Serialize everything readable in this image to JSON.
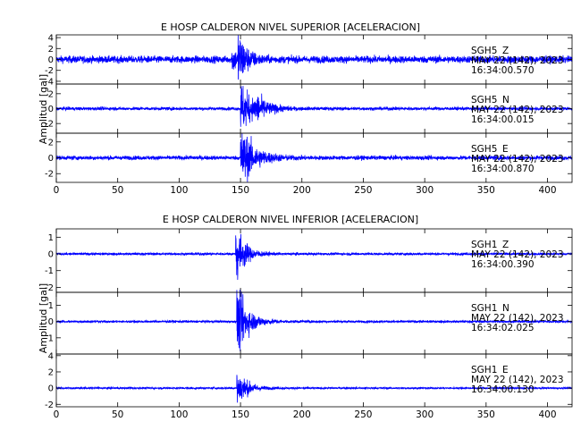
{
  "chart_data": [
    {
      "type": "line",
      "title": "E HOSP CALDERON NIVEL SUPERIOR [ACELERACION]",
      "ylabel": "Amplitud [gal]",
      "xlabel": "",
      "xlim": [
        0,
        420
      ],
      "x_ticks": [
        0,
        50,
        100,
        150,
        200,
        250,
        300,
        350,
        400
      ],
      "line_color": "#0000ff",
      "grid": false,
      "series": [
        {
          "name": "SGH5 Z",
          "station": "SGH5",
          "component": "Z",
          "date": "MAY 22 (142), 2023",
          "time": "16:34:00.570",
          "ylim": [
            -4.5,
            4.5
          ],
          "y_ticks": [
            -4,
            -2,
            0,
            2,
            4
          ],
          "noise": 0.45,
          "events": [
            {
              "t": 143,
              "amp": 1.6,
              "decay": 5
            },
            {
              "t": 148,
              "amp": 3.2,
              "decay": 7
            }
          ]
        },
        {
          "name": "SGH5 N",
          "station": "SGH5",
          "component": "N",
          "date": "MAY 22 (142), 2023",
          "time": "16:34:00.015",
          "ylim": [
            -3.3,
            3.3
          ],
          "y_ticks": [
            -2,
            0,
            2
          ],
          "noise": 0.15,
          "events": [
            {
              "t": 150,
              "amp": 2.6,
              "decay": 9
            },
            {
              "t": 162,
              "amp": 0.9,
              "decay": 10
            }
          ]
        },
        {
          "name": "SGH5 E",
          "station": "SGH5",
          "component": "E",
          "date": "MAY 22 (142), 2023",
          "time": "16:34:00.870",
          "ylim": [
            -3.1,
            3.1
          ],
          "y_ticks": [
            -2,
            0,
            2
          ],
          "noise": 0.18,
          "events": [
            {
              "t": 150,
              "amp": 2.8,
              "decay": 11
            }
          ]
        }
      ]
    },
    {
      "type": "line",
      "title": "E HOSP CALDERON NIVEL INFERIOR [ACELERACION]",
      "ylabel": "Amplitud [gal]",
      "xlabel": "",
      "xlim": [
        0,
        420
      ],
      "x_ticks": [
        0,
        50,
        100,
        150,
        200,
        250,
        300,
        350,
        400
      ],
      "line_color": "#0000ff",
      "grid": false,
      "series": [
        {
          "name": "SGH1 Z",
          "station": "SGH1",
          "component": "Z",
          "date": "MAY 22 (142), 2023",
          "time": "16:34:00.390",
          "ylim": [
            -2.3,
            1.5
          ],
          "y_ticks": [
            -2,
            -1,
            0,
            1
          ],
          "noise": 0.05,
          "events": [
            {
              "t": 146,
              "amp": 1.4,
              "decay": 7
            }
          ]
        },
        {
          "name": "SGH1 N",
          "station": "SGH1",
          "component": "N",
          "date": "MAY 22 (142), 2023",
          "time": "16:34:02.025",
          "ylim": [
            -2.0,
            1.8
          ],
          "y_ticks": [
            -1,
            0,
            1
          ],
          "noise": 0.05,
          "events": [
            {
              "t": 147,
              "amp": 1.5,
              "decay": 9
            }
          ]
        },
        {
          "name": "SGH1 E",
          "station": "SGH1",
          "component": "E",
          "date": "MAY 22 (142), 2023",
          "time": "16:34:00.130",
          "ylim": [
            -2.3,
            4.2
          ],
          "y_ticks": [
            -2,
            0,
            2,
            4
          ],
          "noise": 0.08,
          "events": [
            {
              "t": 147,
              "amp": 1.7,
              "decay": 8
            }
          ]
        }
      ]
    }
  ]
}
